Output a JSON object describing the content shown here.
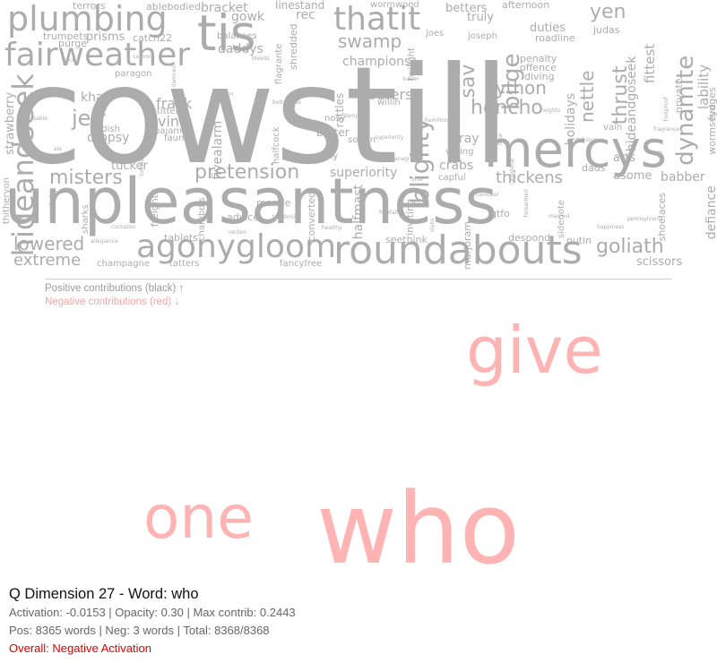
{
  "chart_data": {
    "type": "wordcloud",
    "title": "Q Dimension 27 - Word: who",
    "legend": {
      "positive": "Positive contributions (black) ↑",
      "negative": "Negative contributions (red) ↓"
    },
    "positive_words": [
      "cowstill",
      "unpleasantness",
      "mercys",
      "roundabouts",
      "agonygloom",
      "tis",
      "plumbing",
      "fairweather",
      "thatit",
      "hideandseek",
      "blighty",
      "dynamite",
      "thrust",
      "bilge",
      "jeff",
      "misters",
      "pretension",
      "lowered",
      "extreme",
      "goliath",
      "nettle",
      "swamp",
      "honcho",
      "python",
      "yen",
      "thickens",
      "sav",
      "daddys",
      "fivealarm",
      "halfmast",
      "strawberry",
      "champions",
      "loafers",
      "superiority",
      "prisms",
      "vino",
      "frack",
      "dropsy",
      "khazi",
      "bray",
      "crabs",
      "tucker",
      "babber",
      "scissors",
      "lability",
      "fittest",
      "hideandgoseek",
      "bracket",
      "linestand",
      "rec",
      "gowk",
      "betters",
      "truly",
      "afternoon",
      "modern",
      "bleeds",
      "duties",
      "judas",
      "roadline",
      "penalty",
      "offence",
      "diving",
      "holidays",
      "arts",
      "asome",
      "dads",
      "defiance",
      "shoelaces",
      "wormseye",
      "fudges",
      "private",
      "gtfo",
      "despond",
      "outin",
      "seethink",
      "marjoram",
      "inviting",
      "voting",
      "capful",
      "sidenote",
      "converted",
      "mantle",
      "advice",
      "charybdis",
      "freight",
      "sharks",
      "thitheryon",
      "society",
      "catch22",
      "ablebodied",
      "terrors",
      "trumpets",
      "purge",
      "balances",
      "tablets",
      "tatters",
      "champagne",
      "fancyfree",
      "shredded",
      "rattles",
      "wormwood",
      "paragon",
      "pajamas",
      "fauna",
      "titter",
      "radish",
      "cushy",
      "softan",
      "nosy",
      "batter",
      "superiority",
      "twilight",
      "joes",
      "joseph",
      "willin",
      "flagrante",
      "halfcock",
      "betterwise",
      "caterpillar",
      "vain",
      "heights",
      "kisser",
      "hamilton",
      "carousel",
      "forearmed",
      "married",
      "happiness",
      "pennsylvania",
      "fragrance",
      "foolproof",
      "scam",
      "dubious",
      "treadmill",
      "freefall",
      "slans",
      "cockatoo",
      "allegiance",
      "reckon",
      "lover",
      "tortoise",
      "ale",
      "sable",
      "tuck",
      "carbon",
      "damned",
      "healthy",
      "damp",
      "anagram",
      "blue",
      "floor"
    ],
    "negative_words": [
      "who",
      "give",
      "one"
    ],
    "stats": {
      "activation": -0.0153,
      "opacity": 0.3,
      "max_contrib": 0.2443,
      "pos_words": 8365,
      "neg_words": 3,
      "total_shown": 8368,
      "total": 8368,
      "overall": "Negative Activation"
    }
  },
  "info": {
    "title": "Q Dimension 27 - Word: who",
    "line1": "Activation: -0.0153 | Opacity: 0.30 | Max contrib: 0.2443",
    "line2": "Pos: 8365 words | Neg: 3 words | Total: 8368/8368",
    "overall": "Overall: Negative Activation"
  },
  "colors": {
    "positive_word": "#acacac",
    "negative_word": "#ffb3b3",
    "overall": "#e00000"
  }
}
